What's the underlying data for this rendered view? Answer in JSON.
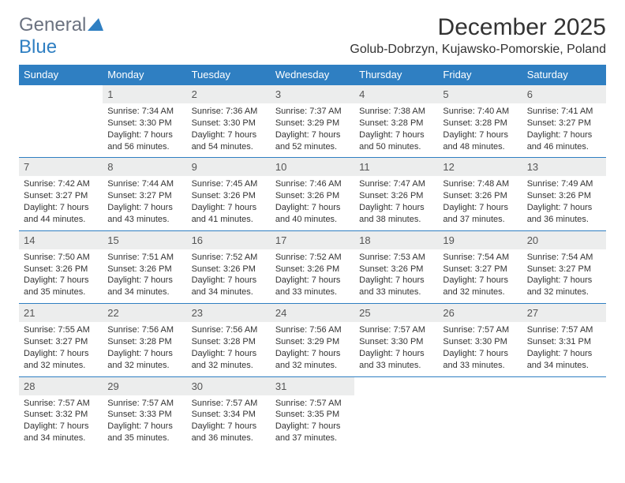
{
  "brand": {
    "part1": "General",
    "part2": "Blue"
  },
  "title": "December 2025",
  "location": "Golub-Dobrzyn, Kujawsko-Pomorskie, Poland",
  "weekdays": [
    "Sunday",
    "Monday",
    "Tuesday",
    "Wednesday",
    "Thursday",
    "Friday",
    "Saturday"
  ],
  "colors": {
    "header_bg": "#2f7fc2",
    "header_text": "#ffffff",
    "daynum_bg": "#eceded",
    "rule": "#2f7fc2",
    "logo_gray": "#6b7280",
    "logo_blue": "#2f7fc2",
    "body_text": "#333333"
  },
  "weeks": [
    [
      null,
      {
        "n": "1",
        "sr": "Sunrise: 7:34 AM",
        "ss": "Sunset: 3:30 PM",
        "dl": "Daylight: 7 hours and 56 minutes."
      },
      {
        "n": "2",
        "sr": "Sunrise: 7:36 AM",
        "ss": "Sunset: 3:30 PM",
        "dl": "Daylight: 7 hours and 54 minutes."
      },
      {
        "n": "3",
        "sr": "Sunrise: 7:37 AM",
        "ss": "Sunset: 3:29 PM",
        "dl": "Daylight: 7 hours and 52 minutes."
      },
      {
        "n": "4",
        "sr": "Sunrise: 7:38 AM",
        "ss": "Sunset: 3:28 PM",
        "dl": "Daylight: 7 hours and 50 minutes."
      },
      {
        "n": "5",
        "sr": "Sunrise: 7:40 AM",
        "ss": "Sunset: 3:28 PM",
        "dl": "Daylight: 7 hours and 48 minutes."
      },
      {
        "n": "6",
        "sr": "Sunrise: 7:41 AM",
        "ss": "Sunset: 3:27 PM",
        "dl": "Daylight: 7 hours and 46 minutes."
      }
    ],
    [
      {
        "n": "7",
        "sr": "Sunrise: 7:42 AM",
        "ss": "Sunset: 3:27 PM",
        "dl": "Daylight: 7 hours and 44 minutes."
      },
      {
        "n": "8",
        "sr": "Sunrise: 7:44 AM",
        "ss": "Sunset: 3:27 PM",
        "dl": "Daylight: 7 hours and 43 minutes."
      },
      {
        "n": "9",
        "sr": "Sunrise: 7:45 AM",
        "ss": "Sunset: 3:26 PM",
        "dl": "Daylight: 7 hours and 41 minutes."
      },
      {
        "n": "10",
        "sr": "Sunrise: 7:46 AM",
        "ss": "Sunset: 3:26 PM",
        "dl": "Daylight: 7 hours and 40 minutes."
      },
      {
        "n": "11",
        "sr": "Sunrise: 7:47 AM",
        "ss": "Sunset: 3:26 PM",
        "dl": "Daylight: 7 hours and 38 minutes."
      },
      {
        "n": "12",
        "sr": "Sunrise: 7:48 AM",
        "ss": "Sunset: 3:26 PM",
        "dl": "Daylight: 7 hours and 37 minutes."
      },
      {
        "n": "13",
        "sr": "Sunrise: 7:49 AM",
        "ss": "Sunset: 3:26 PM",
        "dl": "Daylight: 7 hours and 36 minutes."
      }
    ],
    [
      {
        "n": "14",
        "sr": "Sunrise: 7:50 AM",
        "ss": "Sunset: 3:26 PM",
        "dl": "Daylight: 7 hours and 35 minutes."
      },
      {
        "n": "15",
        "sr": "Sunrise: 7:51 AM",
        "ss": "Sunset: 3:26 PM",
        "dl": "Daylight: 7 hours and 34 minutes."
      },
      {
        "n": "16",
        "sr": "Sunrise: 7:52 AM",
        "ss": "Sunset: 3:26 PM",
        "dl": "Daylight: 7 hours and 34 minutes."
      },
      {
        "n": "17",
        "sr": "Sunrise: 7:52 AM",
        "ss": "Sunset: 3:26 PM",
        "dl": "Daylight: 7 hours and 33 minutes."
      },
      {
        "n": "18",
        "sr": "Sunrise: 7:53 AM",
        "ss": "Sunset: 3:26 PM",
        "dl": "Daylight: 7 hours and 33 minutes."
      },
      {
        "n": "19",
        "sr": "Sunrise: 7:54 AM",
        "ss": "Sunset: 3:27 PM",
        "dl": "Daylight: 7 hours and 32 minutes."
      },
      {
        "n": "20",
        "sr": "Sunrise: 7:54 AM",
        "ss": "Sunset: 3:27 PM",
        "dl": "Daylight: 7 hours and 32 minutes."
      }
    ],
    [
      {
        "n": "21",
        "sr": "Sunrise: 7:55 AM",
        "ss": "Sunset: 3:27 PM",
        "dl": "Daylight: 7 hours and 32 minutes."
      },
      {
        "n": "22",
        "sr": "Sunrise: 7:56 AM",
        "ss": "Sunset: 3:28 PM",
        "dl": "Daylight: 7 hours and 32 minutes."
      },
      {
        "n": "23",
        "sr": "Sunrise: 7:56 AM",
        "ss": "Sunset: 3:28 PM",
        "dl": "Daylight: 7 hours and 32 minutes."
      },
      {
        "n": "24",
        "sr": "Sunrise: 7:56 AM",
        "ss": "Sunset: 3:29 PM",
        "dl": "Daylight: 7 hours and 32 minutes."
      },
      {
        "n": "25",
        "sr": "Sunrise: 7:57 AM",
        "ss": "Sunset: 3:30 PM",
        "dl": "Daylight: 7 hours and 33 minutes."
      },
      {
        "n": "26",
        "sr": "Sunrise: 7:57 AM",
        "ss": "Sunset: 3:30 PM",
        "dl": "Daylight: 7 hours and 33 minutes."
      },
      {
        "n": "27",
        "sr": "Sunrise: 7:57 AM",
        "ss": "Sunset: 3:31 PM",
        "dl": "Daylight: 7 hours and 34 minutes."
      }
    ],
    [
      {
        "n": "28",
        "sr": "Sunrise: 7:57 AM",
        "ss": "Sunset: 3:32 PM",
        "dl": "Daylight: 7 hours and 34 minutes."
      },
      {
        "n": "29",
        "sr": "Sunrise: 7:57 AM",
        "ss": "Sunset: 3:33 PM",
        "dl": "Daylight: 7 hours and 35 minutes."
      },
      {
        "n": "30",
        "sr": "Sunrise: 7:57 AM",
        "ss": "Sunset: 3:34 PM",
        "dl": "Daylight: 7 hours and 36 minutes."
      },
      {
        "n": "31",
        "sr": "Sunrise: 7:57 AM",
        "ss": "Sunset: 3:35 PM",
        "dl": "Daylight: 7 hours and 37 minutes."
      },
      null,
      null,
      null
    ]
  ]
}
